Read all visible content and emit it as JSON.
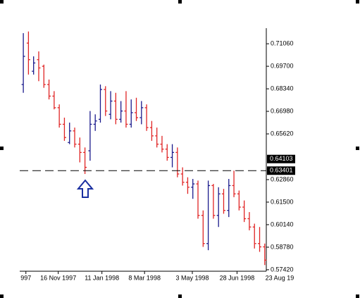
{
  "chart_data": {
    "type": "ohlc",
    "up_color": "#1a1a8c",
    "down_color": "#e02424",
    "open": [
      0.686,
      0.711,
      0.694,
      0.701,
      0.697,
      0.686,
      0.679,
      0.672,
      0.662,
      0.651,
      0.658,
      0.65,
      0.645,
      0.646,
      0.662,
      0.665,
      0.683,
      0.668,
      0.676,
      0.665,
      0.67,
      0.662,
      0.669,
      0.666,
      0.672,
      0.66,
      0.655,
      0.65,
      0.647,
      0.642,
      0.645,
      0.632,
      0.627,
      0.624,
      0.626,
      0.607,
      0.59,
      0.625,
      0.607,
      0.62,
      0.61,
      0.625,
      0.62,
      0.612,
      0.605,
      0.6,
      0.59,
      0.588
    ],
    "high": [
      0.717,
      0.718,
      0.703,
      0.706,
      0.698,
      0.689,
      0.682,
      0.674,
      0.666,
      0.663,
      0.66,
      0.654,
      0.648,
      0.67,
      0.668,
      0.686,
      0.685,
      0.682,
      0.681,
      0.676,
      0.682,
      0.677,
      0.678,
      0.676,
      0.674,
      0.664,
      0.66,
      0.655,
      0.65,
      0.65,
      0.648,
      0.636,
      0.63,
      0.629,
      0.628,
      0.61,
      0.628,
      0.626,
      0.624,
      0.623,
      0.629,
      0.634,
      0.622,
      0.616,
      0.609,
      0.602,
      0.6,
      0.59
    ],
    "low": [
      0.681,
      0.692,
      0.692,
      0.688,
      0.684,
      0.677,
      0.671,
      0.66,
      0.652,
      0.65,
      0.648,
      0.639,
      0.632,
      0.64,
      0.658,
      0.663,
      0.667,
      0.665,
      0.662,
      0.663,
      0.66,
      0.66,
      0.664,
      0.662,
      0.658,
      0.652,
      0.648,
      0.645,
      0.64,
      0.636,
      0.63,
      0.625,
      0.62,
      0.617,
      0.605,
      0.588,
      0.586,
      0.605,
      0.6,
      0.608,
      0.606,
      0.618,
      0.61,
      0.603,
      0.598,
      0.587,
      0.585,
      0.577
    ],
    "close": [
      0.703,
      0.701,
      0.699,
      0.696,
      0.686,
      0.679,
      0.672,
      0.662,
      0.654,
      0.658,
      0.65,
      0.645,
      0.636,
      0.662,
      0.664,
      0.683,
      0.67,
      0.676,
      0.665,
      0.67,
      0.662,
      0.669,
      0.666,
      0.672,
      0.66,
      0.655,
      0.65,
      0.647,
      0.642,
      0.645,
      0.632,
      0.627,
      0.624,
      0.626,
      0.607,
      0.59,
      0.625,
      0.607,
      0.62,
      0.61,
      0.625,
      0.62,
      0.612,
      0.605,
      0.6,
      0.59,
      0.588,
      0.58
    ],
    "xlim": [
      -0.7,
      47.3
    ],
    "xticks": [
      {
        "value": 0.5,
        "label": "997"
      },
      {
        "value": 6.8,
        "label": "16 Nov 1997"
      },
      {
        "value": 15.3,
        "label": "11 Jan 1998"
      },
      {
        "value": 23.6,
        "label": "8 Mar 1998"
      },
      {
        "value": 32.9,
        "label": "3 May 1998"
      },
      {
        "value": 41.6,
        "label": "28 Jun 1998"
      },
      {
        "value": 49.9,
        "label": "23 Aug 19"
      }
    ],
    "ylim": [
      0.5733,
      0.72
    ],
    "yticks": [
      {
        "value": 0.7106,
        "label": "0.71060"
      },
      {
        "value": 0.697,
        "label": "0.69700"
      },
      {
        "value": 0.6834,
        "label": "0.68340"
      },
      {
        "value": 0.6698,
        "label": "0.66980"
      },
      {
        "value": 0.6562,
        "label": "0.65620"
      },
      {
        "value": 0.6286,
        "label": "0.62860"
      },
      {
        "value": 0.615,
        "label": "0.61500"
      },
      {
        "value": 0.6014,
        "label": "0.60140"
      },
      {
        "value": 0.5878,
        "label": "0.58780"
      },
      {
        "value": 0.5742,
        "label": "0.57420"
      }
    ],
    "price_labels": [
      {
        "value": 0.64103,
        "label": "0.64103"
      },
      {
        "value": 0.63401,
        "label": "0.63401"
      }
    ],
    "hline": 0.63401
  }
}
